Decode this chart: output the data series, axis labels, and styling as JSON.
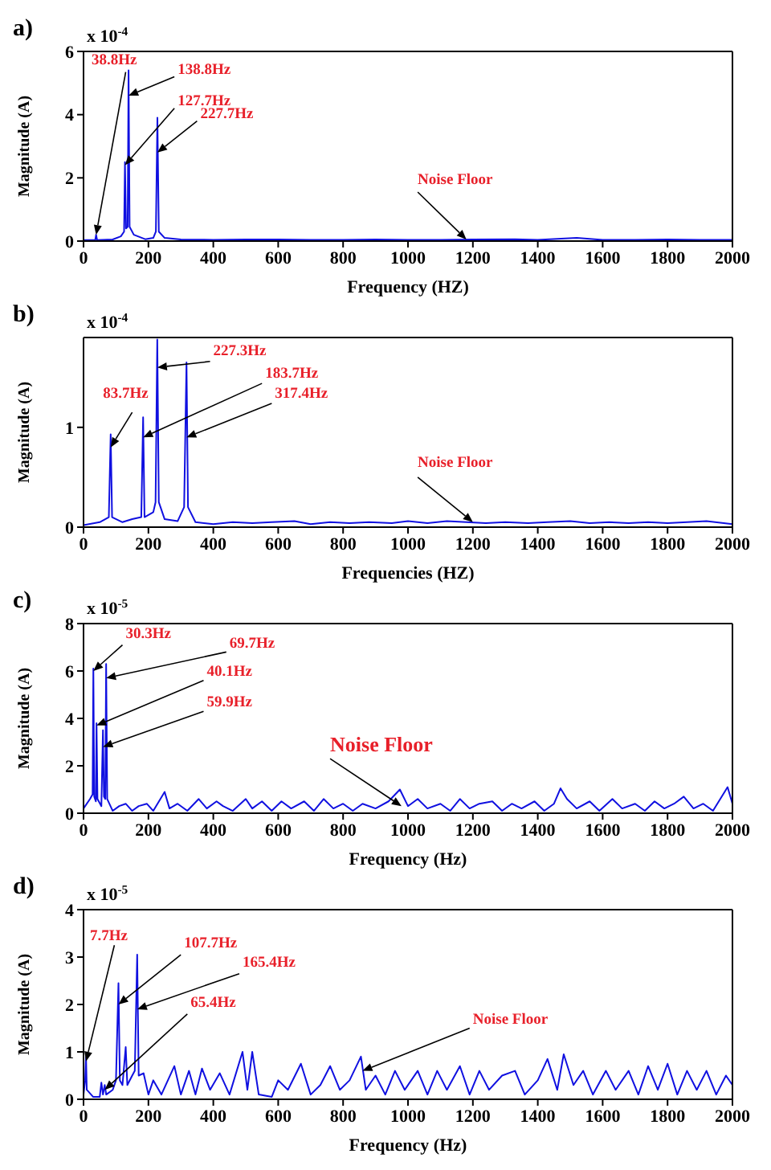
{
  "chart_data": [
    {
      "type": "line",
      "title": "a)",
      "xlabel": "Frequency (HZ)",
      "ylabel": "Magnitude (A)",
      "xlim": [
        0,
        2000
      ],
      "xticks": [
        0,
        200,
        400,
        600,
        800,
        1000,
        1200,
        1400,
        1600,
        1800,
        2000
      ],
      "ylim": [
        0,
        6
      ],
      "yticks": [
        0,
        2,
        4,
        6
      ],
      "grid": false,
      "legend": false,
      "marker": "none",
      "line_style": "solid",
      "annotations": [
        "x 10$^{-4}$",
        {
          "text": "38.8Hz",
          "x": 38.8,
          "y": 0.2
        },
        {
          "text": "138.8Hz",
          "x": 138.8,
          "y": 4.6
        },
        {
          "text": "127.7Hz",
          "x": 127.7,
          "y": 2.4
        },
        {
          "text": "227.7Hz",
          "x": 227.7,
          "y": 2.8
        },
        {
          "text": "Noise Floor",
          "x": 1180,
          "y": 0.05
        }
      ],
      "series": [
        {
          "color": "#1010e0",
          "x": [
            0,
            30,
            36,
            38.8,
            42,
            90,
            115,
            125,
            127.7,
            131,
            136,
            138.8,
            142,
            155,
            190,
            215,
            223,
            227.7,
            232,
            250,
            300,
            400,
            500,
            600,
            700,
            800,
            900,
            1000,
            1100,
            1200,
            1330,
            1400,
            1520,
            1600,
            1700,
            1800,
            1900,
            2000
          ],
          "values": [
            0.03,
            0.03,
            0.03,
            0.2,
            0.03,
            0.05,
            0.15,
            0.3,
            2.5,
            0.4,
            0.45,
            5.4,
            0.45,
            0.2,
            0.06,
            0.1,
            0.3,
            3.9,
            0.3,
            0.1,
            0.05,
            0.04,
            0.05,
            0.05,
            0.04,
            0.04,
            0.05,
            0.04,
            0.04,
            0.05,
            0.06,
            0.04,
            0.1,
            0.04,
            0.04,
            0.05,
            0.04,
            0.04
          ]
        }
      ]
    },
    {
      "type": "line",
      "title": "b)",
      "xlabel": "Frequencies (HZ)",
      "ylabel": "Magnitude (A)",
      "xlim": [
        0,
        2000
      ],
      "xticks": [
        0,
        200,
        400,
        600,
        800,
        1000,
        1200,
        1400,
        1600,
        1800,
        2000
      ],
      "ylim": [
        0,
        1.9
      ],
      "yticks": [
        0,
        1
      ],
      "grid": false,
      "legend": false,
      "marker": "none",
      "line_style": "solid",
      "annotations": [
        "x 10$^{-4}$",
        {
          "text": "83.7Hz",
          "x": 83.7,
          "y": 0.8
        },
        {
          "text": "227.3Hz",
          "x": 227.3,
          "y": 1.6
        },
        {
          "text": "183.7Hz",
          "x": 183.7,
          "y": 0.9
        },
        {
          "text": "317.4Hz",
          "x": 317.4,
          "y": 0.9
        },
        {
          "text": "Noise Floor",
          "x": 1200,
          "y": 0.05
        }
      ],
      "series": [
        {
          "color": "#1010e0",
          "x": [
            0,
            50,
            78,
            83.7,
            88,
            120,
            150,
            178,
            183.7,
            188,
            215,
            222,
            227.3,
            232,
            250,
            290,
            310,
            317.4,
            322,
            345,
            400,
            460,
            520,
            580,
            650,
            700,
            760,
            820,
            880,
            950,
            1000,
            1060,
            1120,
            1180,
            1240,
            1300,
            1370,
            1430,
            1500,
            1560,
            1620,
            1680,
            1740,
            1800,
            1860,
            1920,
            2000
          ],
          "values": [
            0.02,
            0.05,
            0.1,
            0.93,
            0.1,
            0.05,
            0.08,
            0.1,
            1.1,
            0.1,
            0.15,
            0.25,
            1.88,
            0.25,
            0.08,
            0.06,
            0.2,
            1.65,
            0.2,
            0.05,
            0.03,
            0.05,
            0.04,
            0.05,
            0.06,
            0.03,
            0.05,
            0.04,
            0.05,
            0.04,
            0.06,
            0.04,
            0.06,
            0.05,
            0.04,
            0.05,
            0.04,
            0.05,
            0.06,
            0.04,
            0.05,
            0.04,
            0.05,
            0.04,
            0.05,
            0.06,
            0.03
          ]
        }
      ]
    },
    {
      "type": "line",
      "title": "c)",
      "xlabel": "Frequency (Hz)",
      "ylabel": "Magnitude (A)",
      "xlim": [
        0,
        2000
      ],
      "xticks": [
        0,
        200,
        400,
        600,
        800,
        1000,
        1200,
        1400,
        1600,
        1800,
        2000
      ],
      "ylim": [
        0,
        8
      ],
      "yticks": [
        0,
        2,
        4,
        6,
        8
      ],
      "grid": false,
      "legend": false,
      "marker": "none",
      "line_style": "solid",
      "annotations": [
        "x 10$^{-5}$",
        {
          "text": "30.3Hz",
          "x": 30.3,
          "y": 6.0
        },
        {
          "text": "69.7Hz",
          "x": 69.7,
          "y": 5.7
        },
        {
          "text": "40.1Hz",
          "x": 40.1,
          "y": 3.7
        },
        {
          "text": "59.9Hz",
          "x": 59.9,
          "y": 2.8
        },
        {
          "text": "Noise Floor",
          "x": 980,
          "y": 0.3
        }
      ],
      "series": [
        {
          "color": "#1010e0",
          "x": [
            0,
            20,
            28,
            30.3,
            33,
            38,
            40.1,
            43,
            55,
            59.9,
            63,
            67,
            69.7,
            73,
            90,
            110,
            130,
            150,
            170,
            195,
            215,
            250,
            265,
            290,
            320,
            355,
            380,
            410,
            430,
            460,
            500,
            520,
            550,
            580,
            610,
            640,
            680,
            710,
            740,
            770,
            800,
            830,
            860,
            900,
            940,
            975,
            1000,
            1030,
            1060,
            1100,
            1130,
            1160,
            1190,
            1220,
            1260,
            1290,
            1320,
            1350,
            1390,
            1420,
            1450,
            1470,
            1490,
            1520,
            1560,
            1590,
            1630,
            1660,
            1700,
            1730,
            1760,
            1790,
            1820,
            1850,
            1880,
            1910,
            1940,
            1985,
            2000
          ],
          "values": [
            0.2,
            0.6,
            0.8,
            6.1,
            0.7,
            0.5,
            3.8,
            0.6,
            0.3,
            3.5,
            0.7,
            0.6,
            6.3,
            0.6,
            0.1,
            0.3,
            0.4,
            0.1,
            0.3,
            0.4,
            0.1,
            0.9,
            0.2,
            0.4,
            0.1,
            0.6,
            0.2,
            0.5,
            0.3,
            0.1,
            0.6,
            0.2,
            0.5,
            0.1,
            0.5,
            0.2,
            0.5,
            0.1,
            0.6,
            0.2,
            0.4,
            0.1,
            0.4,
            0.2,
            0.5,
            1.0,
            0.3,
            0.6,
            0.2,
            0.4,
            0.1,
            0.6,
            0.2,
            0.4,
            0.5,
            0.1,
            0.4,
            0.2,
            0.5,
            0.1,
            0.4,
            1.05,
            0.6,
            0.2,
            0.5,
            0.1,
            0.6,
            0.2,
            0.4,
            0.1,
            0.5,
            0.2,
            0.4,
            0.7,
            0.2,
            0.4,
            0.1,
            1.1,
            0.4
          ]
        }
      ]
    },
    {
      "type": "line",
      "title": "d)",
      "xlabel": "Frequency (Hz)",
      "ylabel": "Magnitude (A)",
      "xlim": [
        0,
        2000
      ],
      "xticks": [
        0,
        200,
        400,
        600,
        800,
        1000,
        1200,
        1400,
        1600,
        1800,
        2000
      ],
      "ylim": [
        0,
        4
      ],
      "yticks": [
        0,
        1,
        2,
        3,
        4
      ],
      "grid": false,
      "legend": false,
      "marker": "none",
      "line_style": "solid",
      "annotations": [
        "x 10$^{-5}$",
        {
          "text": "7.7Hz",
          "x": 7.7,
          "y": 0.8
        },
        {
          "text": "107.7Hz",
          "x": 107.7,
          "y": 2.0
        },
        {
          "text": "165.4Hz",
          "x": 165.4,
          "y": 1.9
        },
        {
          "text": "65.4Hz",
          "x": 65.4,
          "y": 0.2
        },
        {
          "text": "Noise Floor",
          "x": 860,
          "y": 0.6
        }
      ],
      "series": [
        {
          "color": "#1010e0",
          "x": [
            0,
            5,
            7.7,
            10,
            30,
            50,
            55,
            60,
            65.4,
            70,
            90,
            100,
            107.7,
            112,
            120,
            130,
            135,
            150,
            158,
            165.4,
            170,
            185,
            200,
            215,
            240,
            280,
            300,
            325,
            345,
            365,
            390,
            420,
            450,
            490,
            505,
            520,
            540,
            580,
            600,
            630,
            670,
            700,
            730,
            760,
            790,
            820,
            855,
            870,
            900,
            930,
            960,
            990,
            1030,
            1060,
            1090,
            1120,
            1160,
            1190,
            1220,
            1250,
            1290,
            1330,
            1360,
            1400,
            1430,
            1460,
            1480,
            1510,
            1540,
            1570,
            1610,
            1640,
            1680,
            1710,
            1740,
            1770,
            1800,
            1830,
            1860,
            1890,
            1920,
            1950,
            1980,
            2000
          ],
          "values": [
            0.1,
            0.4,
            0.9,
            0.2,
            0.05,
            0.05,
            0.35,
            0.1,
            0.3,
            0.1,
            0.2,
            0.4,
            2.45,
            0.4,
            0.3,
            1.1,
            0.3,
            0.5,
            0.6,
            3.05,
            0.5,
            0.55,
            0.1,
            0.4,
            0.1,
            0.7,
            0.1,
            0.6,
            0.1,
            0.65,
            0.2,
            0.55,
            0.1,
            1.0,
            0.2,
            1.0,
            0.1,
            0.05,
            0.4,
            0.2,
            0.75,
            0.1,
            0.3,
            0.7,
            0.2,
            0.4,
            0.9,
            0.2,
            0.5,
            0.1,
            0.6,
            0.2,
            0.6,
            0.1,
            0.6,
            0.2,
            0.7,
            0.1,
            0.6,
            0.2,
            0.5,
            0.6,
            0.1,
            0.4,
            0.85,
            0.2,
            0.95,
            0.3,
            0.6,
            0.1,
            0.6,
            0.2,
            0.6,
            0.1,
            0.7,
            0.2,
            0.75,
            0.1,
            0.6,
            0.2,
            0.6,
            0.1,
            0.5,
            0.3
          ]
        }
      ]
    }
  ]
}
